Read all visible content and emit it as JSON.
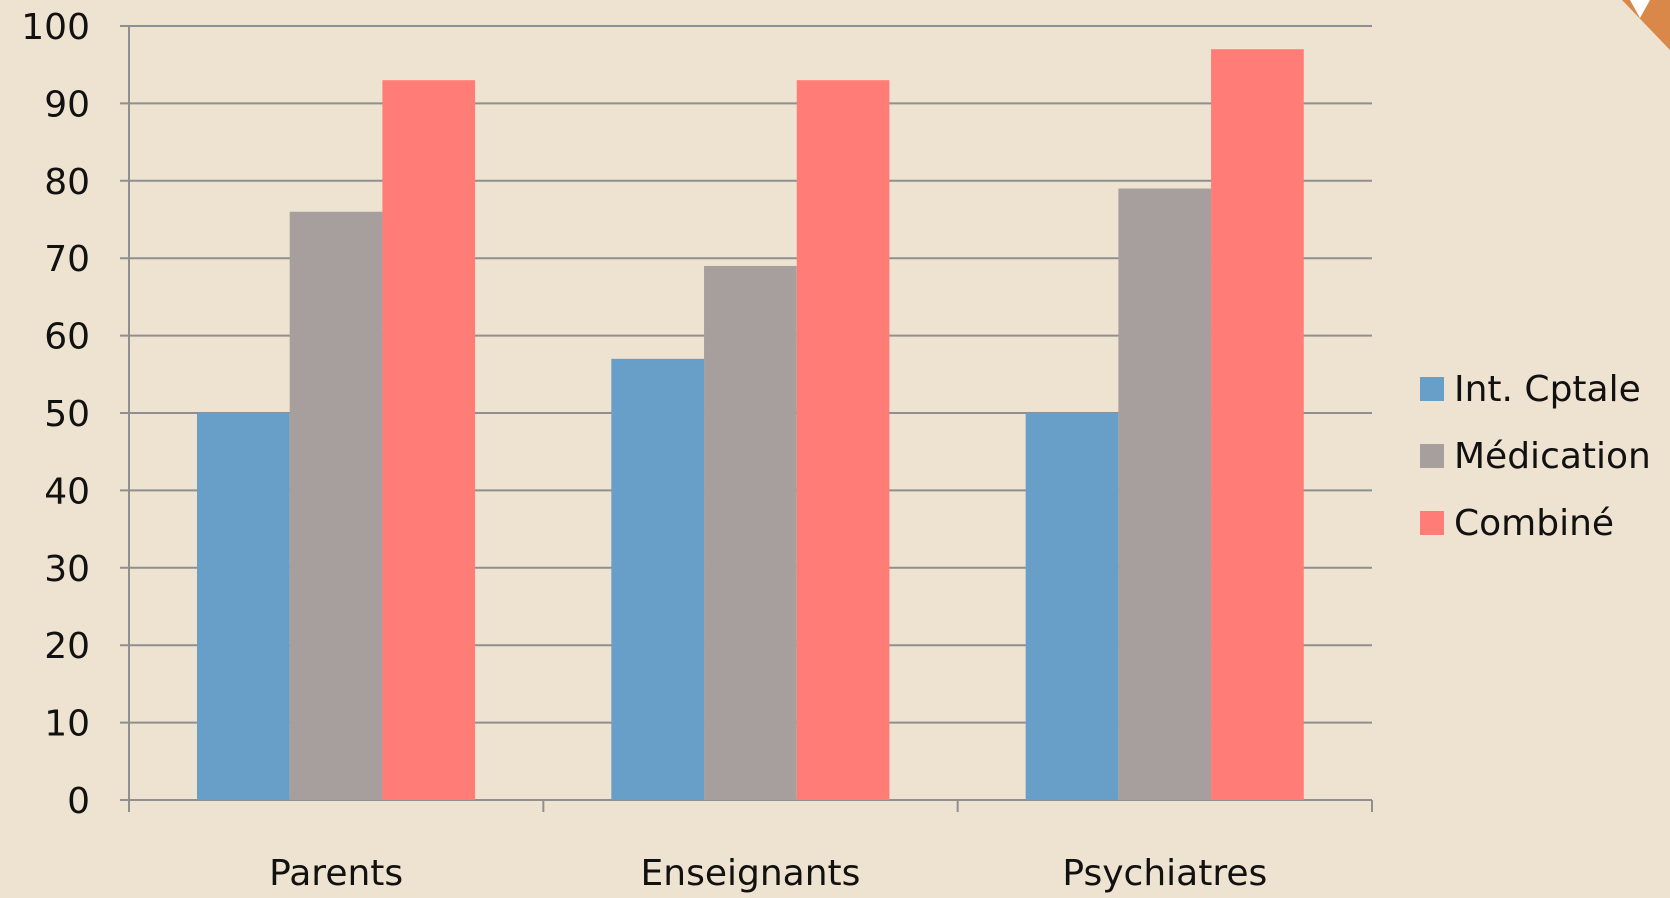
{
  "chart_data": {
    "type": "bar",
    "categories": [
      "Parents",
      "Enseignants",
      "Psychiatres"
    ],
    "series": [
      {
        "name": "Int. Cptale",
        "color": "#679FC8",
        "values": [
          50,
          57,
          50
        ]
      },
      {
        "name": "Médication",
        "color": "#A79F9D",
        "values": [
          76,
          69,
          79
        ]
      },
      {
        "name": "Combiné",
        "color": "#FF7C77",
        "values": [
          93,
          93,
          97
        ]
      }
    ],
    "ylim": [
      0,
      100
    ],
    "yticks": [
      0,
      10,
      20,
      30,
      40,
      50,
      60,
      70,
      80,
      90,
      100
    ],
    "grid": true,
    "legend": "right"
  }
}
